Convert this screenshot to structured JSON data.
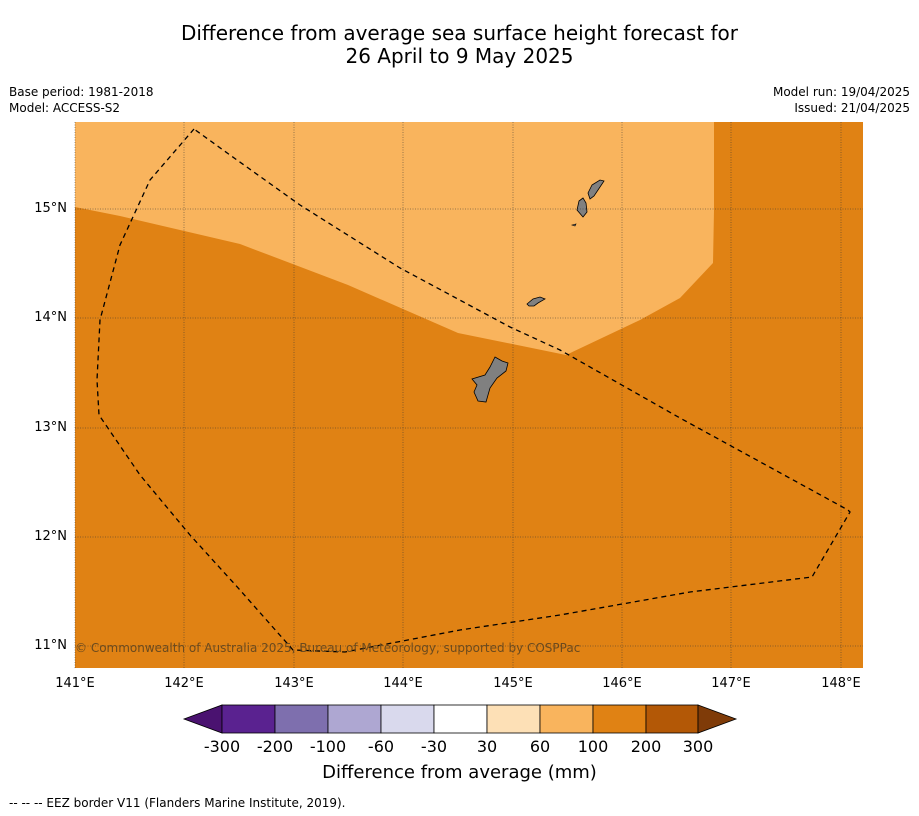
{
  "title_line1": "Difference from average sea surface height forecast for",
  "title_line2": "26 April to 9 May 2025",
  "meta_left": [
    "Base period: 1981-2018",
    "Model: ACCESS-S2"
  ],
  "meta_right": [
    "Model run: 19/04/2025",
    "Issued: 21/04/2025"
  ],
  "lat_labels": [
    "15°N",
    "14°N",
    "13°N",
    "12°N",
    "11°N"
  ],
  "lon_labels": [
    "141°E",
    "142°E",
    "143°E",
    "144°E",
    "145°E",
    "146°E",
    "147°E",
    "148°E"
  ],
  "copyright": "© Commonwealth of Australia 2025, Bureau of Meteorology, supported by COSPPac",
  "colorbar": {
    "ticks": [
      "-300",
      "-200",
      "-100",
      "-60",
      "-30",
      "30",
      "60",
      "100",
      "200",
      "300"
    ],
    "colors": [
      "#4a1270",
      "#5a2290",
      "#7e6fae",
      "#aea7d2",
      "#d9d9ed",
      "#ffffff",
      "#fde0b6",
      "#f9b45d",
      "#e08214",
      "#b35806",
      "#7f3b08"
    ],
    "label": "Difference from average (mm)"
  },
  "footer": "--  --  -- EEZ border V11 (Flanders Marine Institute, 2019).",
  "map_colors": {
    "band_100_200": "#e08214",
    "band_60_100": "#f9b45d",
    "land": "#808080"
  }
}
